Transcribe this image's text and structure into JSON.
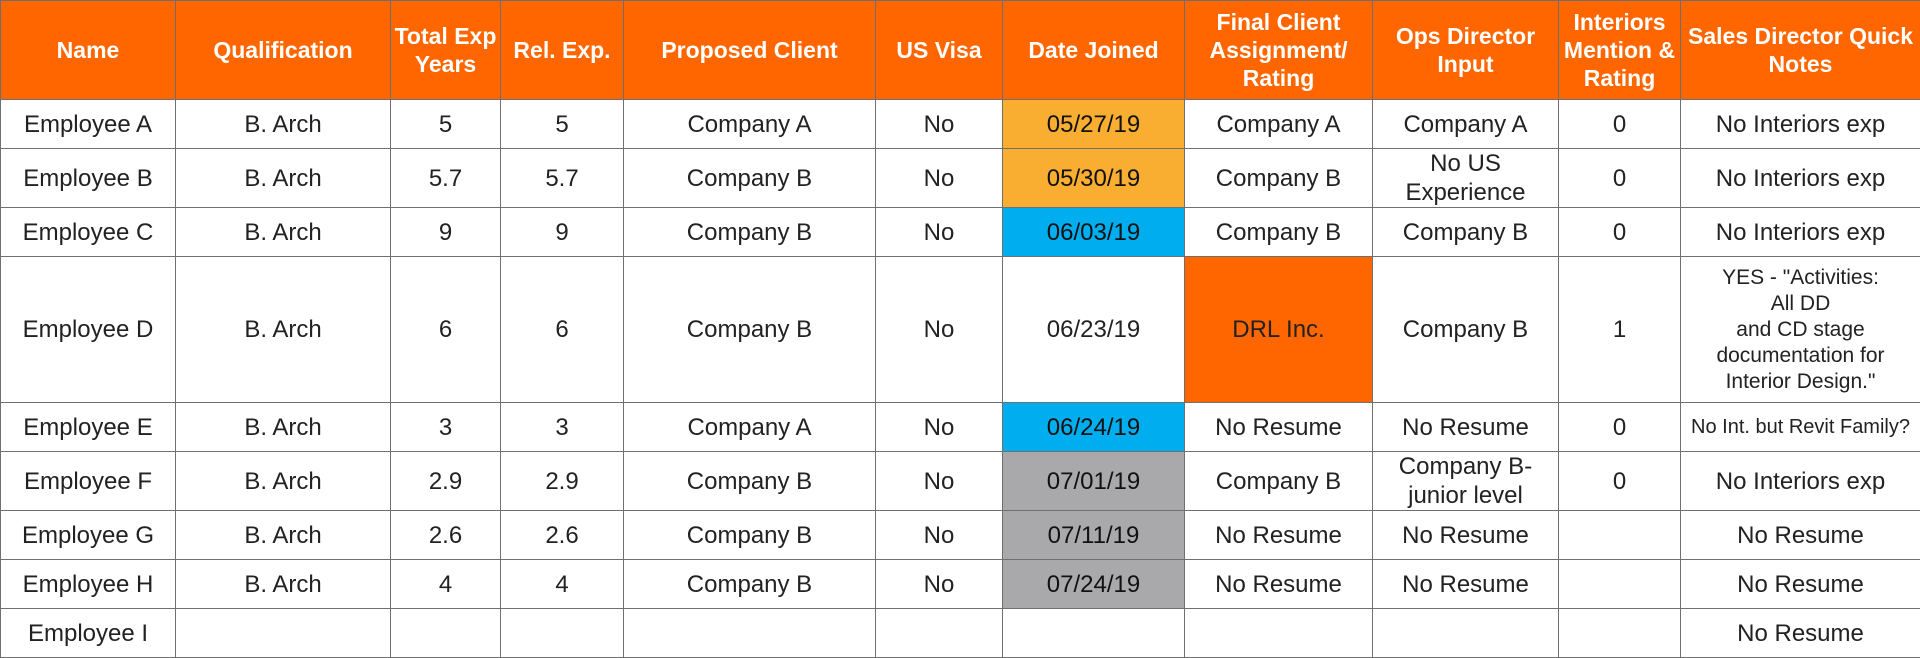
{
  "colors": {
    "header_bg": "#ff6600",
    "header_text": "#ffffff",
    "date_orange": "#f9ae31",
    "date_blue": "#00adef",
    "date_gray": "#a9a9ab",
    "assignment_highlight": "#ff6600"
  },
  "columns": [
    "Name",
    "Qualification",
    "Total Exp Years",
    "Rel. Exp.",
    "Proposed Client",
    "US Visa",
    "Date Joined",
    "Final Client Assignment/ Rating",
    "Ops Director Input",
    "Interiors Mention & Rating",
    "Sales Director Quick Notes"
  ],
  "rows": [
    {
      "name": "Employee A",
      "qualification": "B. Arch",
      "total_exp": "5",
      "rel_exp": "5",
      "proposed_client": "Company A",
      "us_visa": "No",
      "date_joined": "05/27/19",
      "date_color": "orange",
      "final_client": "Company A",
      "ops_input": "Company A",
      "interiors": "0",
      "notes": "No Interiors exp"
    },
    {
      "name": "Employee B",
      "qualification": "B. Arch",
      "total_exp": "5.7",
      "rel_exp": "5.7",
      "proposed_client": "Company B",
      "us_visa": "No",
      "date_joined": "05/30/19",
      "date_color": "orange",
      "final_client": "Company B",
      "ops_input": "No US Experience",
      "interiors": "0",
      "notes": "No Interiors exp"
    },
    {
      "name": "Employee C",
      "qualification": "B. Arch",
      "total_exp": "9",
      "rel_exp": "9",
      "proposed_client": "Company B",
      "us_visa": "No",
      "date_joined": "06/03/19",
      "date_color": "blue",
      "final_client": "Company B",
      "ops_input": "Company B",
      "interiors": "0",
      "notes": "No Interiors exp"
    },
    {
      "name": "Employee D",
      "qualification": "B. Arch",
      "total_exp": "6",
      "rel_exp": "6",
      "proposed_client": "Company B",
      "us_visa": "No",
      "date_joined": "06/23/19",
      "date_color": "none",
      "final_client": "DRL Inc.",
      "final_client_highlight": true,
      "ops_input": "Company B",
      "interiors": "1",
      "notes": "YES - \"Activities:\nAll DD\nand CD stage\ndocumentation for\nInterior Design.\""
    },
    {
      "name": "Employee E",
      "qualification": "B. Arch",
      "total_exp": "3",
      "rel_exp": "3",
      "proposed_client": "Company A",
      "us_visa": "No",
      "date_joined": "06/24/19",
      "date_color": "blue",
      "final_client": "No Resume",
      "ops_input": "No Resume",
      "interiors": "0",
      "notes": "No Int. but Revit Family?"
    },
    {
      "name": "Employee F",
      "qualification": "B. Arch",
      "total_exp": "2.9",
      "rel_exp": "2.9",
      "proposed_client": "Company B",
      "us_visa": "No",
      "date_joined": "07/01/19",
      "date_color": "gray",
      "final_client": "Company B",
      "ops_input": "Company B- junior level",
      "interiors": "0",
      "notes": "No Interiors exp"
    },
    {
      "name": "Employee G",
      "qualification": "B. Arch",
      "total_exp": "2.6",
      "rel_exp": "2.6",
      "proposed_client": "Company B",
      "us_visa": "No",
      "date_joined": "07/11/19",
      "date_color": "gray",
      "final_client": "No Resume",
      "ops_input": "No Resume",
      "interiors": "",
      "notes": "No Resume"
    },
    {
      "name": "Employee H",
      "qualification": "B. Arch",
      "total_exp": "4",
      "rel_exp": "4",
      "proposed_client": "Company B",
      "us_visa": "No",
      "date_joined": "07/24/19",
      "date_color": "gray",
      "final_client": "No Resume",
      "ops_input": "No Resume",
      "interiors": "",
      "notes": "No Resume"
    },
    {
      "name": "Employee I",
      "qualification": "",
      "total_exp": "",
      "rel_exp": "",
      "proposed_client": "",
      "us_visa": "",
      "date_joined": "",
      "date_color": "none",
      "final_client": "",
      "ops_input": "",
      "interiors": "",
      "notes": "No Resume"
    }
  ]
}
